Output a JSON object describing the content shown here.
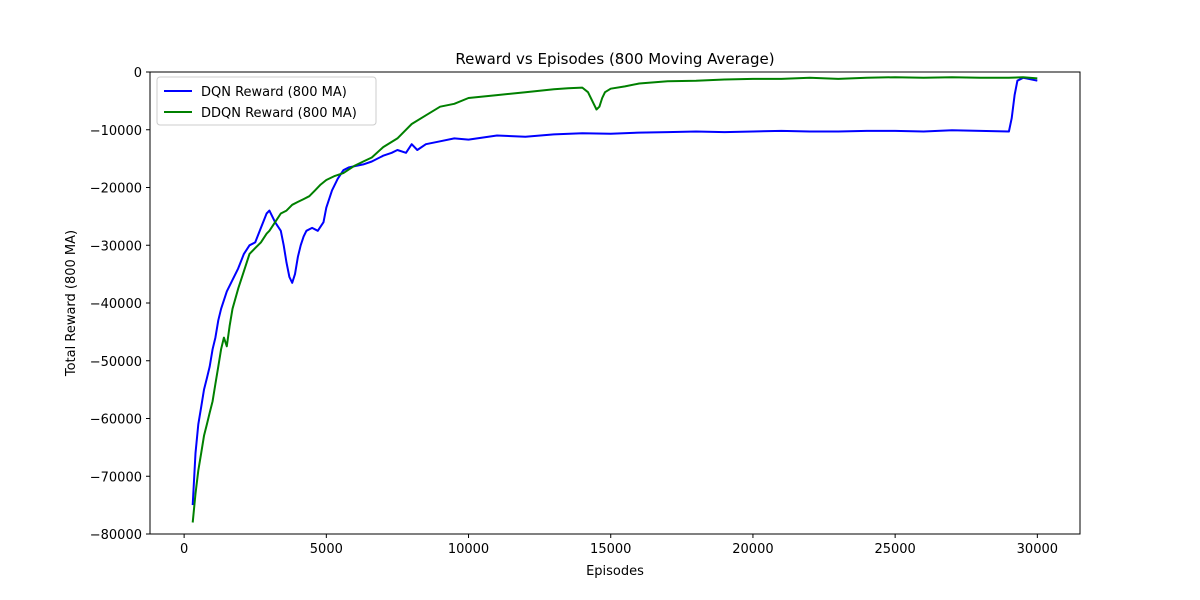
{
  "chart_data": {
    "type": "line",
    "title": "Reward vs Episodes (800 Moving Average)",
    "xlabel": "Episodes",
    "ylabel": "Total Reward (800 MA)",
    "xlim": [
      -1200,
      31500
    ],
    "ylim": [
      -80000,
      0
    ],
    "x_ticks": [
      0,
      5000,
      10000,
      15000,
      20000,
      25000,
      30000
    ],
    "y_ticks": [
      0,
      -10000,
      -20000,
      -30000,
      -40000,
      -50000,
      -60000,
      -70000,
      -80000
    ],
    "grid": false,
    "legend_position": "top-left",
    "series": [
      {
        "name": "DQN Reward (800 MA)",
        "color": "#0000ff",
        "x": [
          300,
          400,
          500,
          600,
          700,
          800,
          900,
          1000,
          1100,
          1200,
          1300,
          1500,
          1700,
          1900,
          2100,
          2300,
          2500,
          2700,
          2900,
          3000,
          3200,
          3400,
          3500,
          3600,
          3700,
          3800,
          3900,
          4000,
          4100,
          4200,
          4300,
          4500,
          4700,
          4900,
          5000,
          5200,
          5400,
          5600,
          5800,
          6000,
          6300,
          6600,
          7000,
          7300,
          7500,
          7800,
          8000,
          8200,
          8500,
          9000,
          9500,
          10000,
          11000,
          12000,
          13000,
          14000,
          15000,
          16000,
          17000,
          18000,
          19000,
          20000,
          21000,
          22000,
          23000,
          24000,
          25000,
          26000,
          27000,
          28000,
          29000,
          29100,
          29200,
          29300,
          29500,
          29700,
          30000
        ],
        "values": [
          -75000,
          -66000,
          -61000,
          -58000,
          -55000,
          -53000,
          -51000,
          -48000,
          -46000,
          -43000,
          -41000,
          -38000,
          -36000,
          -34000,
          -31500,
          -30000,
          -29500,
          -27000,
          -24500,
          -24000,
          -26000,
          -27500,
          -30000,
          -33000,
          -35500,
          -36500,
          -35000,
          -32000,
          -30000,
          -28500,
          -27500,
          -27000,
          -27500,
          -26000,
          -23500,
          -20500,
          -18500,
          -17000,
          -16500,
          -16300,
          -16000,
          -15500,
          -14500,
          -14000,
          -13500,
          -14000,
          -12500,
          -13500,
          -12500,
          -12000,
          -11500,
          -11700,
          -11000,
          -11200,
          -10800,
          -10600,
          -10700,
          -10500,
          -10400,
          -10300,
          -10400,
          -10300,
          -10200,
          -10300,
          -10300,
          -10200,
          -10200,
          -10300,
          -10100,
          -10200,
          -10300,
          -8000,
          -4000,
          -1500,
          -1000,
          -1200,
          -1500
        ]
      },
      {
        "name": "DDQN Reward (800 MA)",
        "color": "#008000",
        "x": [
          300,
          400,
          500,
          600,
          700,
          800,
          900,
          1000,
          1100,
          1200,
          1300,
          1400,
          1500,
          1600,
          1700,
          1900,
          2100,
          2300,
          2500,
          2700,
          2900,
          3000,
          3200,
          3400,
          3600,
          3800,
          4000,
          4200,
          4400,
          4600,
          4800,
          5000,
          5300,
          5600,
          6000,
          6300,
          6600,
          7000,
          7500,
          8000,
          8500,
          9000,
          9500,
          10000,
          11000,
          12000,
          13000,
          13500,
          14000,
          14200,
          14400,
          14500,
          14600,
          14700,
          14800,
          15000,
          15500,
          16000,
          17000,
          18000,
          19000,
          20000,
          21000,
          22000,
          23000,
          24000,
          25000,
          26000,
          27000,
          28000,
          29000,
          29500,
          30000
        ],
        "values": [
          -78000,
          -73000,
          -69000,
          -66000,
          -63000,
          -61000,
          -59000,
          -57000,
          -54000,
          -51000,
          -48000,
          -46000,
          -47500,
          -44000,
          -41000,
          -37500,
          -34500,
          -31500,
          -30500,
          -29500,
          -28000,
          -27500,
          -26000,
          -24500,
          -24000,
          -23000,
          -22500,
          -22000,
          -21500,
          -20500,
          -19500,
          -18700,
          -18000,
          -17500,
          -16200,
          -15500,
          -14800,
          -13000,
          -11500,
          -9000,
          -7500,
          -6000,
          -5500,
          -4500,
          -4000,
          -3500,
          -3000,
          -2800,
          -2700,
          -3500,
          -5500,
          -6500,
          -6000,
          -4500,
          -3500,
          -2900,
          -2500,
          -2000,
          -1600,
          -1500,
          -1300,
          -1200,
          -1200,
          -1000,
          -1200,
          -1000,
          -900,
          -1000,
          -900,
          -1000,
          -1000,
          -900,
          -1100
        ]
      }
    ]
  }
}
